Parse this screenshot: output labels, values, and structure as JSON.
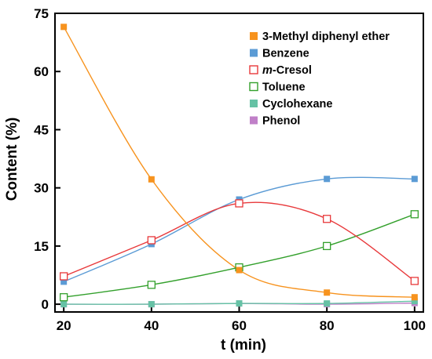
{
  "chart_data": {
    "type": "line",
    "title": "",
    "xlabel": "t (min)",
    "ylabel": "Content (%)",
    "xlim": [
      18,
      102
    ],
    "ylim": [
      -2,
      75
    ],
    "x_ticks": [
      20,
      40,
      60,
      80,
      100
    ],
    "y_ticks": [
      0,
      15,
      30,
      45,
      60,
      75
    ],
    "x": [
      20,
      40,
      60,
      80,
      100
    ],
    "grid": false,
    "legend_position": "top-right",
    "series": [
      {
        "name": "3-Methyl diphenyl ether",
        "name_italic": "",
        "name_rest": "3-Methyl diphenyl ether",
        "color": "#f7931e",
        "marker": "filled-square",
        "values": [
          71.5,
          32.2,
          8.8,
          3.0,
          1.8
        ]
      },
      {
        "name": "Benzene",
        "name_italic": "",
        "name_rest": "Benzene",
        "color": "#5b9bd5",
        "marker": "filled-square",
        "values": [
          5.8,
          15.5,
          27.0,
          32.3,
          32.3
        ]
      },
      {
        "name": "m-Cresol",
        "name_italic": "m",
        "name_rest": "-Cresol",
        "color": "#e8393b",
        "marker": "open-square",
        "values": [
          7.2,
          16.5,
          26.0,
          22.0,
          6.0
        ]
      },
      {
        "name": "Toluene",
        "name_italic": "",
        "name_rest": "Toluene",
        "color": "#33a02c",
        "marker": "open-square",
        "values": [
          1.8,
          5.0,
          9.5,
          15.0,
          23.2
        ]
      },
      {
        "name": "Cyclohexane",
        "name_italic": "",
        "name_rest": "Cyclohexane",
        "color": "#66c2a5",
        "marker": "filled-square",
        "values": [
          0.0,
          0.0,
          0.2,
          0.2,
          0.8
        ]
      },
      {
        "name": "Phenol",
        "name_italic": "",
        "name_rest": "Phenol",
        "color": "#c080c8",
        "marker": "filled-square",
        "values": [
          0.0,
          0.0,
          0.2,
          0.0,
          0.3
        ]
      }
    ]
  }
}
